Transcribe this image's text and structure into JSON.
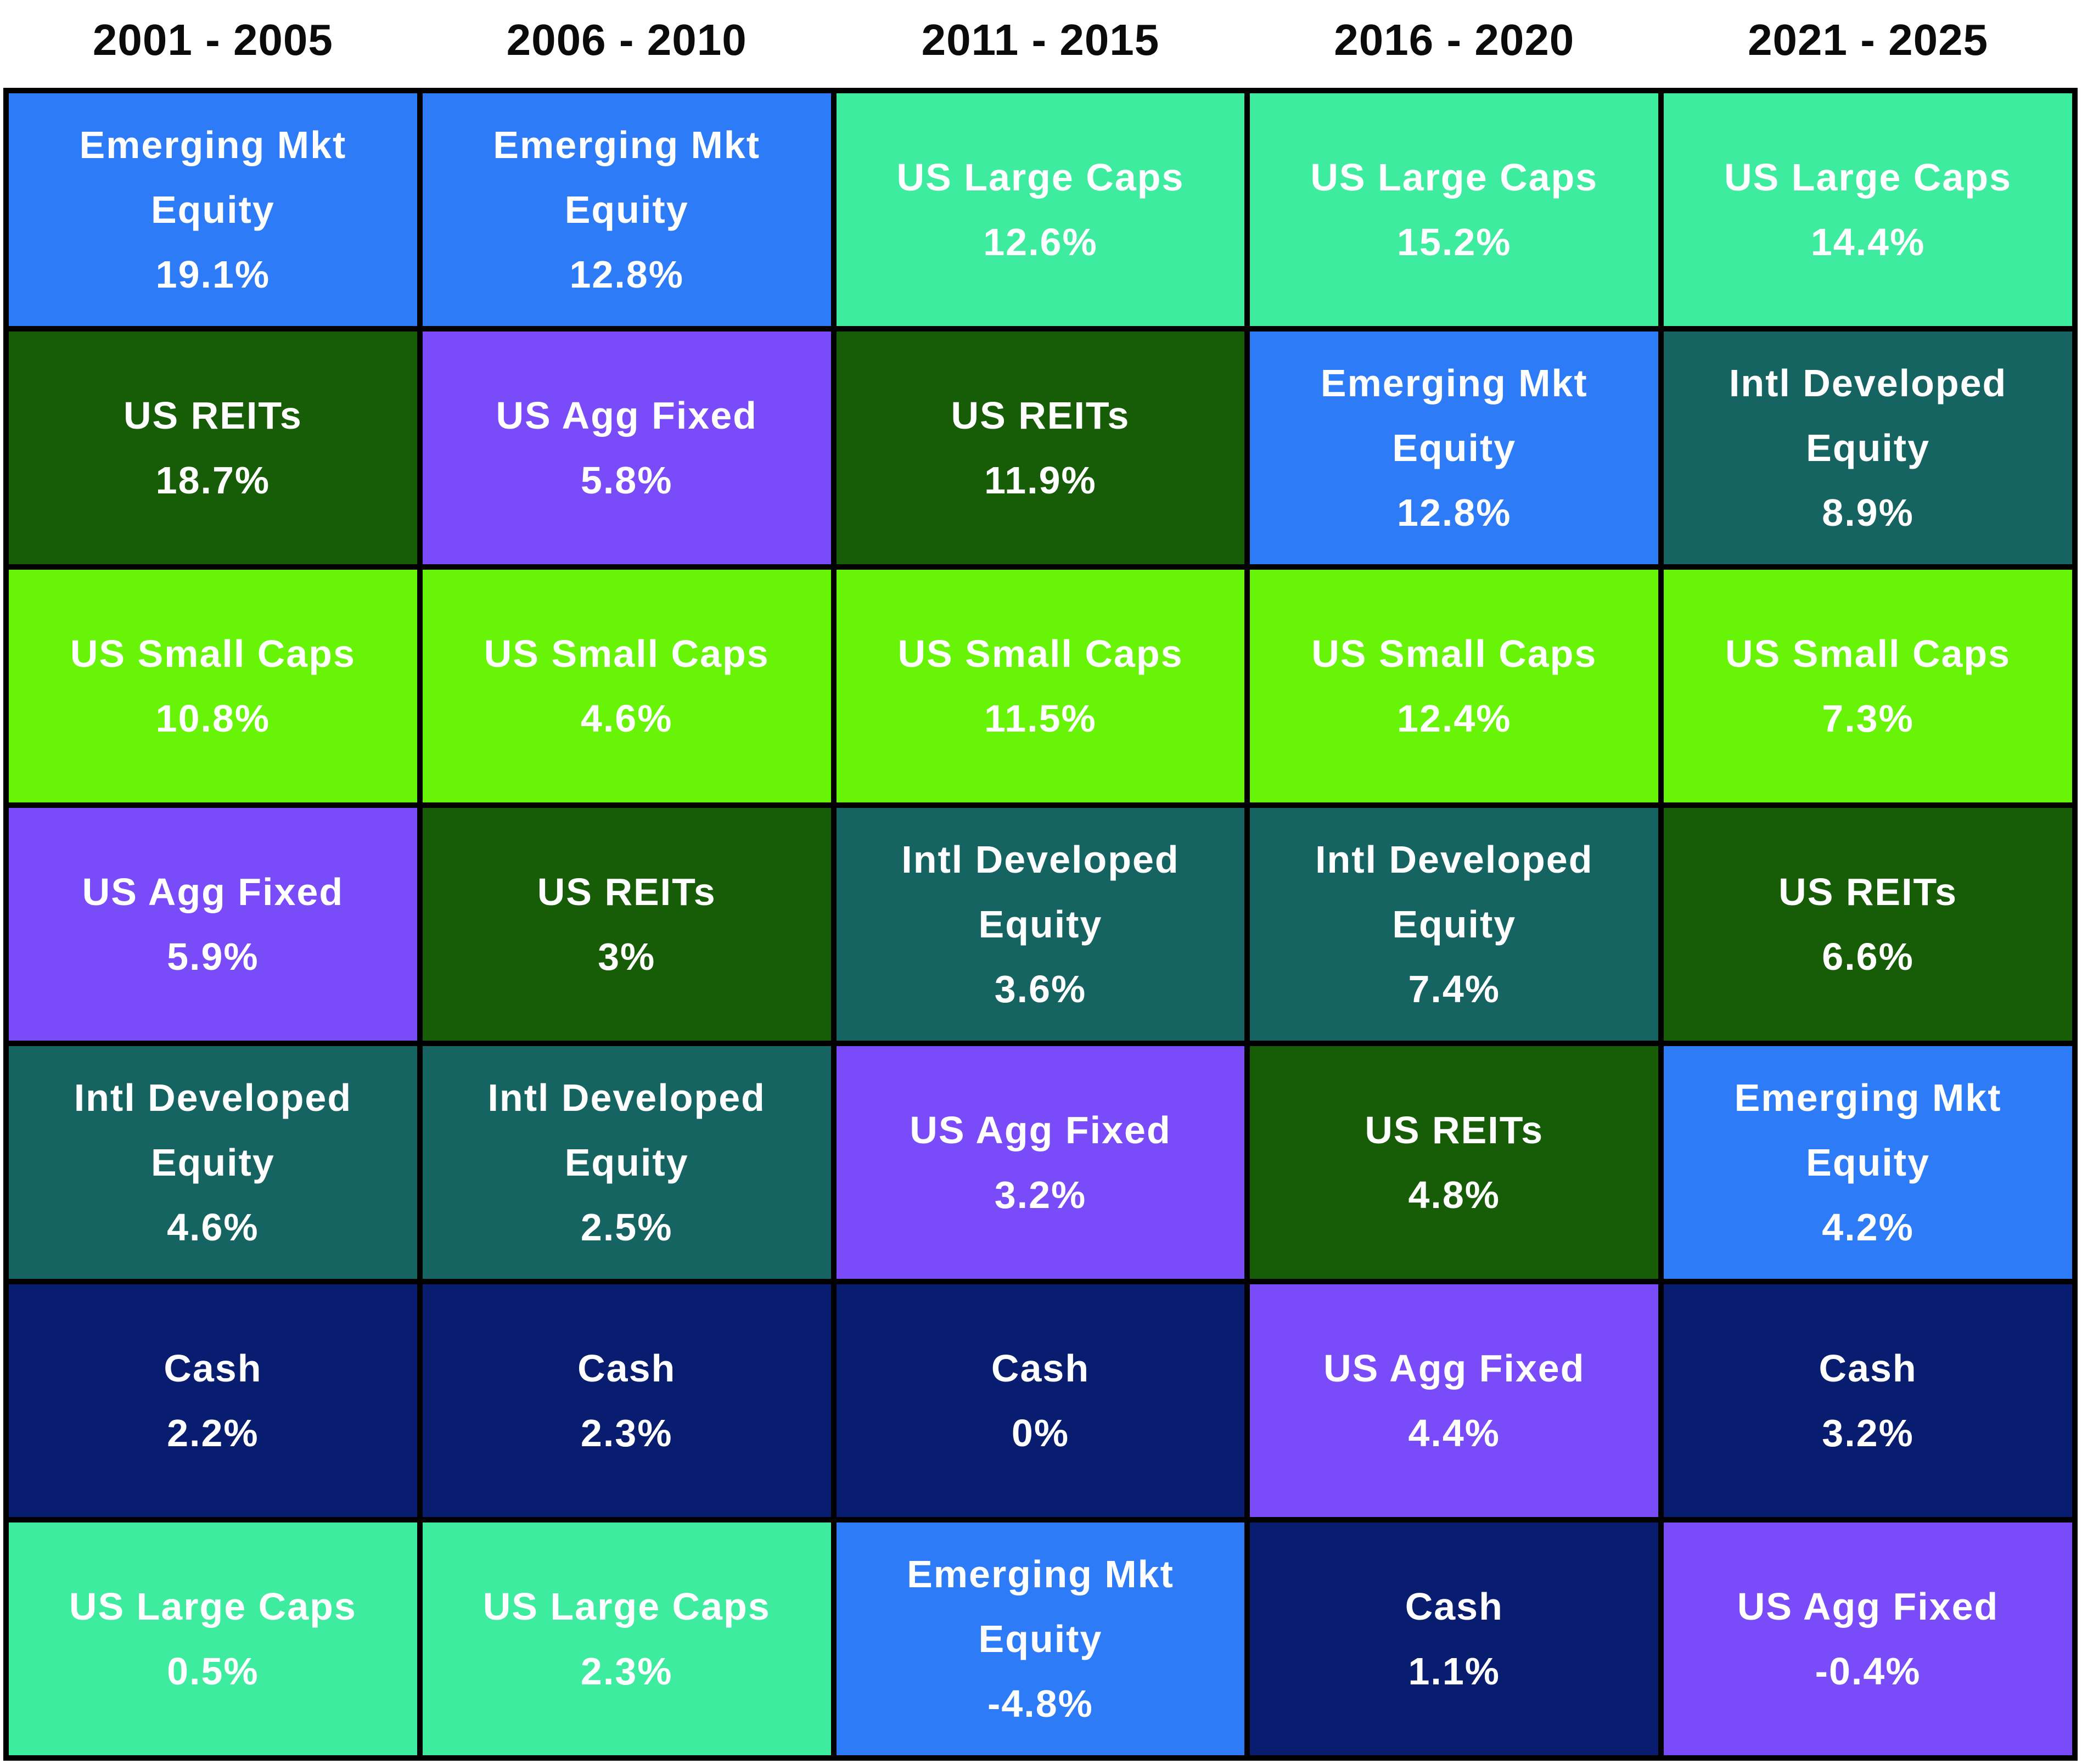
{
  "background": "#FFFFFF",
  "border_color": "#000000",
  "text_color": "#FFFFFF",
  "header_text_color": "#0B0B0B",
  "asset_colors": {
    "Emerging Mkt Equity": "#2E7BF7",
    "US REITs": "#175C06",
    "US Small Caps": "#67F407",
    "US Agg Fixed": "#7A4BF8",
    "Intl Developed Equity": "#166462",
    "Cash": "#081C70",
    "US Large Caps": "#3EECA0"
  },
  "columns": [
    {
      "header": "2001 - 2005",
      "cells": [
        {
          "asset": "Emerging Mkt\nEquity",
          "value": "19.1%",
          "color": "#2E7BF7"
        },
        {
          "asset": "US REITs",
          "value": "18.7%",
          "color": "#175C06"
        },
        {
          "asset": "US Small Caps",
          "value": "10.8%",
          "color": "#67F407"
        },
        {
          "asset": "US Agg Fixed",
          "value": "5.9%",
          "color": "#7A4BF8"
        },
        {
          "asset": "Intl Developed\nEquity",
          "value": "4.6%",
          "color": "#166462"
        },
        {
          "asset": "Cash",
          "value": "2.2%",
          "color": "#081C70"
        },
        {
          "asset": "US Large Caps",
          "value": "0.5%",
          "color": "#3EECA0"
        }
      ]
    },
    {
      "header": "2006 - 2010",
      "cells": [
        {
          "asset": "Emerging Mkt\nEquity",
          "value": "12.8%",
          "color": "#2E7BF7"
        },
        {
          "asset": "US Agg Fixed",
          "value": "5.8%",
          "color": "#7A4BF8"
        },
        {
          "asset": "US Small Caps",
          "value": "4.6%",
          "color": "#67F407"
        },
        {
          "asset": "US REITs",
          "value": "3%",
          "color": "#175C06"
        },
        {
          "asset": "Intl Developed\nEquity",
          "value": "2.5%",
          "color": "#166462"
        },
        {
          "asset": "Cash",
          "value": "2.3%",
          "color": "#081C70"
        },
        {
          "asset": "US Large Caps",
          "value": "2.3%",
          "color": "#3EECA0"
        }
      ]
    },
    {
      "header": "2011 - 2015",
      "cells": [
        {
          "asset": "US Large Caps",
          "value": "12.6%",
          "color": "#3EECA0"
        },
        {
          "asset": "US REITs",
          "value": "11.9%",
          "color": "#175C06"
        },
        {
          "asset": "US Small Caps",
          "value": "11.5%",
          "color": "#67F407"
        },
        {
          "asset": "Intl Developed\nEquity",
          "value": "3.6%",
          "color": "#166462"
        },
        {
          "asset": "US Agg Fixed",
          "value": "3.2%",
          "color": "#7A4BF8"
        },
        {
          "asset": "Cash",
          "value": "0%",
          "color": "#081C70"
        },
        {
          "asset": "Emerging Mkt\nEquity",
          "value": "-4.8%",
          "color": "#2E7BF7"
        }
      ]
    },
    {
      "header": "2016 - 2020",
      "cells": [
        {
          "asset": "US Large Caps",
          "value": "15.2%",
          "color": "#3EECA0"
        },
        {
          "asset": "Emerging Mkt\nEquity",
          "value": "12.8%",
          "color": "#2E7BF7"
        },
        {
          "asset": "US Small Caps",
          "value": "12.4%",
          "color": "#67F407"
        },
        {
          "asset": "Intl Developed\nEquity",
          "value": "7.4%",
          "color": "#166462"
        },
        {
          "asset": "US REITs",
          "value": "4.8%",
          "color": "#175C06"
        },
        {
          "asset": "US Agg Fixed",
          "value": "4.4%",
          "color": "#7A4BF8"
        },
        {
          "asset": "Cash",
          "value": "1.1%",
          "color": "#081C70"
        }
      ]
    },
    {
      "header": "2021 - 2025",
      "cells": [
        {
          "asset": "US Large Caps",
          "value": "14.4%",
          "color": "#3EECA0"
        },
        {
          "asset": "Intl Developed\nEquity",
          "value": "8.9%",
          "color": "#166462"
        },
        {
          "asset": "US Small Caps",
          "value": "7.3%",
          "color": "#67F407"
        },
        {
          "asset": "US REITs",
          "value": "6.6%",
          "color": "#175C06"
        },
        {
          "asset": "Emerging Mkt\nEquity",
          "value": "4.2%",
          "color": "#2E7BF7"
        },
        {
          "asset": "Cash",
          "value": "3.2%",
          "color": "#081C70"
        },
        {
          "asset": "US Agg Fixed",
          "value": "-0.4%",
          "color": "#7A4BF8"
        }
      ]
    }
  ],
  "chart_data": {
    "type": "table",
    "title": "",
    "categories": [
      "2001 - 2005",
      "2006 - 2010",
      "2011 - 2015",
      "2016 - 2020",
      "2021 - 2025"
    ],
    "series": [
      {
        "name": "US Large Caps",
        "values": [
          0.5,
          2.3,
          12.6,
          15.2,
          14.4
        ]
      },
      {
        "name": "US Small Caps",
        "values": [
          10.8,
          4.6,
          11.5,
          12.4,
          7.3
        ]
      },
      {
        "name": "Emerging Mkt Equity",
        "values": [
          19.1,
          12.8,
          -4.8,
          12.8,
          4.2
        ]
      },
      {
        "name": "Intl Developed Equity",
        "values": [
          4.6,
          2.5,
          3.6,
          7.4,
          8.9
        ]
      },
      {
        "name": "US REITs",
        "values": [
          18.7,
          3.0,
          11.9,
          4.8,
          6.6
        ]
      },
      {
        "name": "US Agg Fixed",
        "values": [
          5.9,
          5.8,
          3.2,
          4.4,
          -0.4
        ]
      },
      {
        "name": "Cash",
        "values": [
          2.2,
          2.3,
          0.0,
          1.1,
          3.2
        ]
      }
    ],
    "ranking_per_column": [
      [
        "Emerging Mkt Equity",
        "US REITs",
        "US Small Caps",
        "US Agg Fixed",
        "Intl Developed Equity",
        "Cash",
        "US Large Caps"
      ],
      [
        "Emerging Mkt Equity",
        "US Agg Fixed",
        "US Small Caps",
        "US REITs",
        "Intl Developed Equity",
        "Cash",
        "US Large Caps"
      ],
      [
        "US Large Caps",
        "US REITs",
        "US Small Caps",
        "Intl Developed Equity",
        "US Agg Fixed",
        "Cash",
        "Emerging Mkt Equity"
      ],
      [
        "US Large Caps",
        "Emerging Mkt Equity",
        "US Small Caps",
        "Intl Developed Equity",
        "US REITs",
        "US Agg Fixed",
        "Cash"
      ],
      [
        "US Large Caps",
        "Intl Developed Equity",
        "US Small Caps",
        "US REITs",
        "Emerging Mkt Equity",
        "Cash",
        "US Agg Fixed"
      ]
    ],
    "legend_position": "none",
    "grid": true
  }
}
